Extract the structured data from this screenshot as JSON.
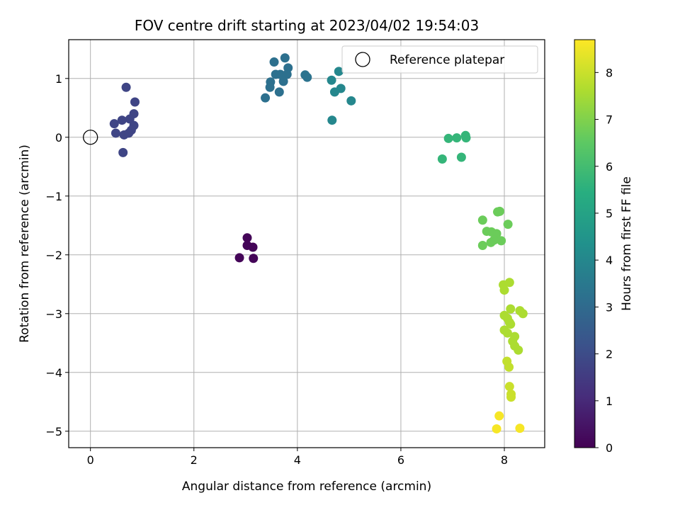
{
  "chart_data": {
    "type": "scatter",
    "title": "FOV centre drift starting at 2023/04/02 19:54:03",
    "xlabel": "Angular distance from reference (arcmin)",
    "ylabel": "Rotation from reference (arcmin)",
    "xlim": [
      -0.42,
      8.78
    ],
    "ylim": [
      -5.28,
      1.66
    ],
    "xticks": [
      0,
      2,
      4,
      6,
      8
    ],
    "yticks": [
      1,
      0,
      -1,
      -2,
      -3,
      -4,
      -5
    ],
    "ytick_labels": [
      "1",
      "0",
      "−1",
      "−2",
      "−3",
      "−4",
      "−5"
    ],
    "grid": true,
    "legend": {
      "placement": "top-right",
      "entries": [
        "Reference platepar"
      ]
    },
    "reference_point": {
      "x": 0,
      "y": 0,
      "label": "Reference platepar"
    },
    "colorbar": {
      "label": "Hours from first FF file",
      "range": [
        0,
        8.7
      ],
      "ticks": [
        0,
        1,
        2,
        3,
        4,
        5,
        6,
        7,
        8
      ],
      "colormap": "viridis"
    },
    "points": [
      {
        "x": 3.03,
        "y": -1.71,
        "h": 0.1
      },
      {
        "x": 3.03,
        "y": -1.84,
        "h": 0.1
      },
      {
        "x": 3.14,
        "y": -1.87,
        "h": 0.1
      },
      {
        "x": 2.88,
        "y": -2.05,
        "h": 0.1
      },
      {
        "x": 3.15,
        "y": -2.06,
        "h": 0.1
      },
      {
        "x": 0.69,
        "y": 0.85,
        "h": 1.8
      },
      {
        "x": 0.86,
        "y": 0.6,
        "h": 1.8
      },
      {
        "x": 0.84,
        "y": 0.4,
        "h": 1.8
      },
      {
        "x": 0.76,
        "y": 0.31,
        "h": 1.8
      },
      {
        "x": 0.61,
        "y": 0.29,
        "h": 1.8
      },
      {
        "x": 0.46,
        "y": 0.23,
        "h": 1.8
      },
      {
        "x": 0.84,
        "y": 0.2,
        "h": 1.8
      },
      {
        "x": 0.79,
        "y": 0.12,
        "h": 1.8
      },
      {
        "x": 0.49,
        "y": 0.07,
        "h": 1.8
      },
      {
        "x": 0.74,
        "y": 0.07,
        "h": 1.8
      },
      {
        "x": 0.65,
        "y": 0.04,
        "h": 1.8
      },
      {
        "x": 0.63,
        "y": -0.26,
        "h": 1.8
      },
      {
        "x": 3.76,
        "y": 1.35,
        "h": 3.2
      },
      {
        "x": 3.55,
        "y": 1.28,
        "h": 3.2
      },
      {
        "x": 3.82,
        "y": 1.18,
        "h": 3.2
      },
      {
        "x": 3.58,
        "y": 1.07,
        "h": 3.2
      },
      {
        "x": 3.67,
        "y": 1.07,
        "h": 3.2
      },
      {
        "x": 3.8,
        "y": 1.07,
        "h": 3.2
      },
      {
        "x": 3.73,
        "y": 0.95,
        "h": 3.2
      },
      {
        "x": 3.48,
        "y": 0.94,
        "h": 3.2
      },
      {
        "x": 3.47,
        "y": 0.85,
        "h": 3.2
      },
      {
        "x": 3.65,
        "y": 0.77,
        "h": 3.2
      },
      {
        "x": 3.38,
        "y": 0.67,
        "h": 3.2
      },
      {
        "x": 4.15,
        "y": 1.06,
        "h": 3.3
      },
      {
        "x": 4.19,
        "y": 1.02,
        "h": 3.3
      },
      {
        "x": 4.8,
        "y": 1.12,
        "h": 4.0
      },
      {
        "x": 4.66,
        "y": 0.97,
        "h": 4.0
      },
      {
        "x": 4.84,
        "y": 0.83,
        "h": 4.0
      },
      {
        "x": 4.72,
        "y": 0.77,
        "h": 4.0
      },
      {
        "x": 5.04,
        "y": 0.62,
        "h": 4.0
      },
      {
        "x": 4.67,
        "y": 0.29,
        "h": 4.0
      },
      {
        "x": 7.25,
        "y": 0.03,
        "h": 5.7
      },
      {
        "x": 7.26,
        "y": -0.01,
        "h": 5.7
      },
      {
        "x": 7.08,
        "y": -0.01,
        "h": 5.7
      },
      {
        "x": 6.92,
        "y": -0.02,
        "h": 5.7
      },
      {
        "x": 6.8,
        "y": -0.37,
        "h": 5.7
      },
      {
        "x": 7.17,
        "y": -0.34,
        "h": 5.7
      },
      {
        "x": 7.87,
        "y": -1.27,
        "h": 6.7
      },
      {
        "x": 7.91,
        "y": -1.26,
        "h": 6.7
      },
      {
        "x": 7.58,
        "y": -1.41,
        "h": 6.7
      },
      {
        "x": 8.07,
        "y": -1.48,
        "h": 6.7
      },
      {
        "x": 7.66,
        "y": -1.6,
        "h": 6.7
      },
      {
        "x": 7.75,
        "y": -1.61,
        "h": 6.7
      },
      {
        "x": 7.85,
        "y": -1.64,
        "h": 6.7
      },
      {
        "x": 7.8,
        "y": -1.75,
        "h": 6.7
      },
      {
        "x": 7.94,
        "y": -1.76,
        "h": 6.7
      },
      {
        "x": 7.74,
        "y": -1.79,
        "h": 6.7
      },
      {
        "x": 7.58,
        "y": -1.84,
        "h": 6.7
      },
      {
        "x": 7.98,
        "y": -2.51,
        "h": 7.6
      },
      {
        "x": 8.1,
        "y": -2.47,
        "h": 7.6
      },
      {
        "x": 8.0,
        "y": -2.6,
        "h": 7.6
      },
      {
        "x": 8.12,
        "y": -2.92,
        "h": 7.6
      },
      {
        "x": 8.3,
        "y": -2.95,
        "h": 7.6
      },
      {
        "x": 8.36,
        "y": -3.0,
        "h": 7.6
      },
      {
        "x": 8.0,
        "y": -3.03,
        "h": 7.6
      },
      {
        "x": 8.06,
        "y": -3.08,
        "h": 7.6
      },
      {
        "x": 8.1,
        "y": -3.15,
        "h": 7.6
      },
      {
        "x": 8.12,
        "y": -3.18,
        "h": 7.6
      },
      {
        "x": 8.0,
        "y": -3.28,
        "h": 7.6
      },
      {
        "x": 8.06,
        "y": -3.33,
        "h": 7.6
      },
      {
        "x": 8.2,
        "y": -3.39,
        "h": 7.6
      },
      {
        "x": 8.16,
        "y": -3.47,
        "h": 7.6
      },
      {
        "x": 8.2,
        "y": -3.55,
        "h": 7.6
      },
      {
        "x": 8.27,
        "y": -3.62,
        "h": 7.6
      },
      {
        "x": 8.05,
        "y": -3.81,
        "h": 7.9
      },
      {
        "x": 8.09,
        "y": -3.91,
        "h": 7.9
      },
      {
        "x": 8.1,
        "y": -4.24,
        "h": 8.0
      },
      {
        "x": 8.13,
        "y": -4.37,
        "h": 8.0
      },
      {
        "x": 8.13,
        "y": -4.42,
        "h": 8.0
      },
      {
        "x": 7.9,
        "y": -4.74,
        "h": 8.6
      },
      {
        "x": 7.85,
        "y": -4.96,
        "h": 8.6
      },
      {
        "x": 8.3,
        "y": -4.95,
        "h": 8.6
      }
    ]
  }
}
